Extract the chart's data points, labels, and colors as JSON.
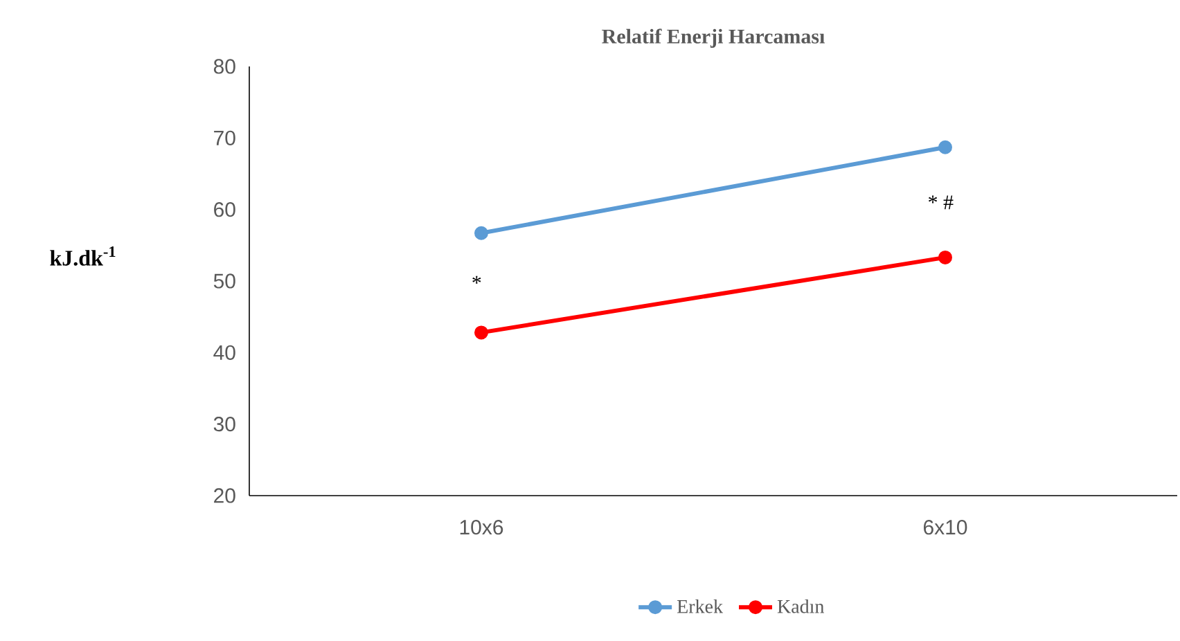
{
  "chart_data": {
    "type": "line",
    "title": "Relatif Enerji Harcaması",
    "ylabel": "kJ.dk$^{-1}$",
    "categories": [
      "10x6",
      "6x10"
    ],
    "series": [
      {
        "name": "Erkek",
        "color": "#5b9bd5",
        "values": [
          56.7,
          68.7
        ]
      },
      {
        "name": "Kadın",
        "color": "#ff0000",
        "values": [
          42.8,
          53.3
        ]
      }
    ],
    "ylim": [
      20,
      80
    ],
    "yticks": [
      20,
      30,
      40,
      50,
      60,
      70,
      80
    ],
    "annotations": [
      "*",
      "* #"
    ],
    "grid": false,
    "legend": "bottom",
    "marker": "circle",
    "line_style": "solid"
  }
}
